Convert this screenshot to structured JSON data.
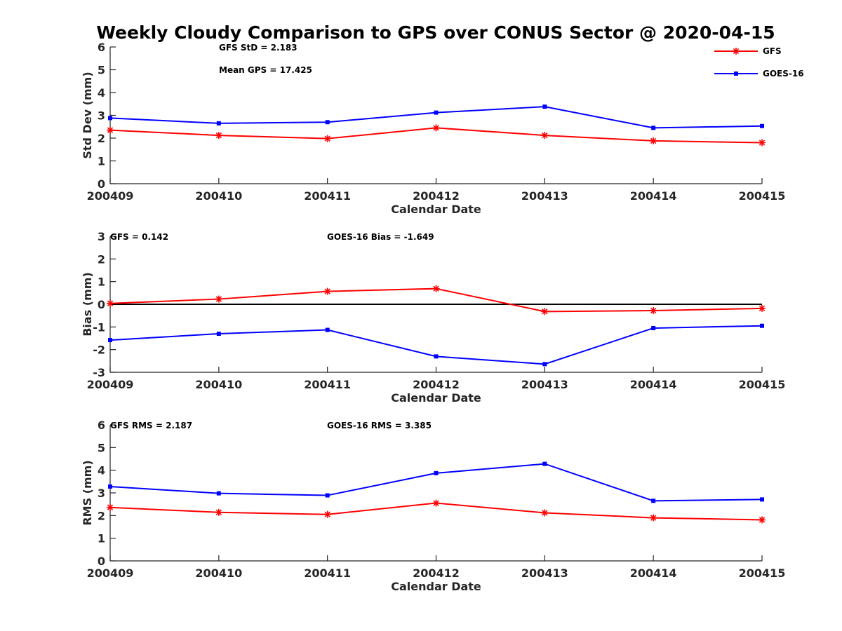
{
  "chart_data": {
    "title": "Weekly Cloudy Comparison to GPS over CONUS Sector @ 2020-04-15",
    "legend": {
      "placement": "top-right",
      "entries": [
        {
          "name": "GFS",
          "color": "#ff0000",
          "marker": "asterisk"
        },
        {
          "name": "GOES-16",
          "color": "#0000ff",
          "marker": "square"
        }
      ]
    },
    "panels": [
      {
        "type": "line",
        "xlabel": "Calendar Date",
        "ylabel": "Std Dev (mm)",
        "categories": [
          "200409",
          "200410",
          "200411",
          "200412",
          "200413",
          "200414",
          "200415"
        ],
        "ylim": [
          0,
          6
        ],
        "yticks": [
          "0",
          "1",
          "2",
          "3",
          "4",
          "5",
          "6"
        ],
        "zero_line": false,
        "annotations": [
          "GFS StD = 2.183",
          "Mean GPS = 17.425"
        ],
        "series": [
          {
            "name": "GFS",
            "color": "#ff0000",
            "values": [
              2.35,
              2.12,
              1.98,
              2.45,
              2.12,
              1.88,
              1.8
            ]
          },
          {
            "name": "GOES-16",
            "color": "#0000ff",
            "values": [
              2.88,
              2.65,
              2.7,
              3.12,
              3.38,
              2.45,
              2.53
            ]
          }
        ]
      },
      {
        "type": "line",
        "xlabel": "Calendar Date",
        "ylabel": "Bias (mm)",
        "categories": [
          "200409",
          "200410",
          "200411",
          "200412",
          "200413",
          "200414",
          "200415"
        ],
        "ylim": [
          -3,
          3
        ],
        "yticks": [
          "-3",
          "-2",
          "-1",
          "0",
          "1",
          "2",
          "3"
        ],
        "zero_line": true,
        "annotations": [
          "GFS = 0.142",
          "GOES-16 Bias  = -1.649"
        ],
        "series": [
          {
            "name": "GFS",
            "color": "#ff0000",
            "values": [
              0.04,
              0.23,
              0.57,
              0.69,
              -0.32,
              -0.28,
              -0.18
            ]
          },
          {
            "name": "GOES-16",
            "color": "#0000ff",
            "values": [
              -1.58,
              -1.3,
              -1.13,
              -2.3,
              -2.64,
              -1.05,
              -0.95
            ]
          }
        ]
      },
      {
        "type": "line",
        "xlabel": "Calendar Date",
        "ylabel": "RMS (mm)",
        "categories": [
          "200409",
          "200410",
          "200411",
          "200412",
          "200413",
          "200414",
          "200415"
        ],
        "ylim": [
          0,
          6
        ],
        "yticks": [
          "0",
          "1",
          "2",
          "3",
          "4",
          "5",
          "6"
        ],
        "zero_line": false,
        "annotations": [
          "GFS RMS = 2.187",
          "GOES-16 RMS = 3.385"
        ],
        "series": [
          {
            "name": "GFS",
            "color": "#ff0000",
            "values": [
              2.36,
              2.14,
              2.05,
              2.55,
              2.12,
              1.9,
              1.81
            ]
          },
          {
            "name": "GOES-16",
            "color": "#0000ff",
            "values": [
              3.28,
              2.98,
              2.89,
              3.87,
              4.28,
              2.65,
              2.71
            ]
          }
        ]
      }
    ]
  }
}
